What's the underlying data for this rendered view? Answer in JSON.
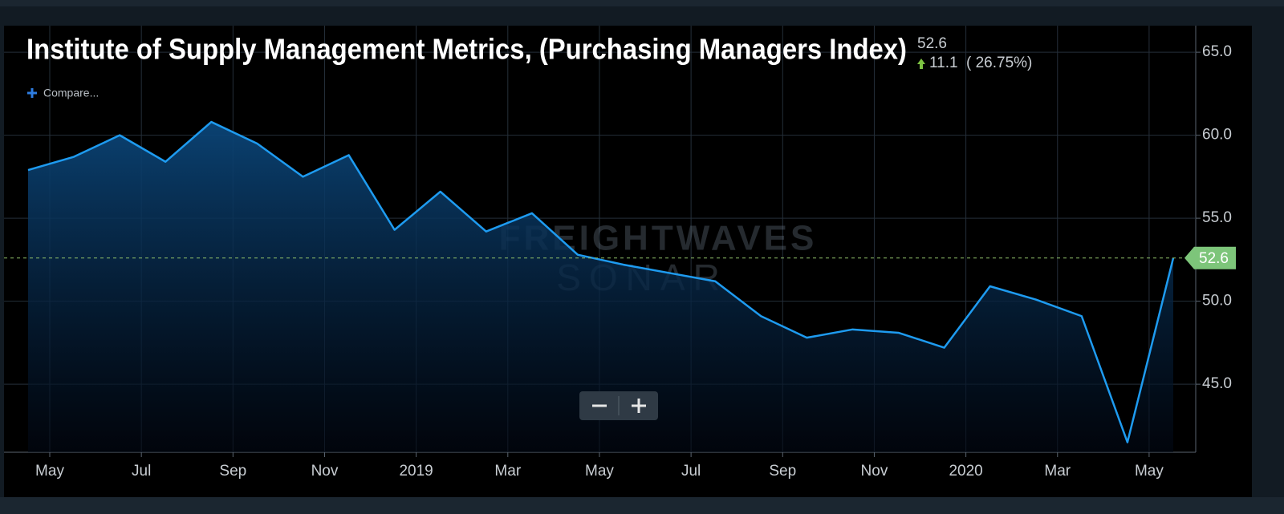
{
  "chart_data": {
    "type": "line",
    "title": "Institute of Supply Management Metrics, (Purchasing Managers Index)",
    "current_value": 52.6,
    "change": 11.1,
    "change_label": "( 26.75%)",
    "compare_label": "Compare...",
    "watermark": [
      "FREIGHTWAVES",
      "SONAR"
    ],
    "categories": [
      "May",
      null,
      "Jul",
      null,
      "Sep",
      null,
      "Nov",
      null,
      "2019",
      null,
      "Mar",
      null,
      "May",
      null,
      "Jul",
      null,
      "Sep",
      null,
      "Nov",
      null,
      "2020",
      null,
      "Mar",
      null,
      "May",
      null
    ],
    "values": [
      57.9,
      58.7,
      60.0,
      58.4,
      60.8,
      59.5,
      57.5,
      58.8,
      54.3,
      56.6,
      54.2,
      55.3,
      52.8,
      52.2,
      51.7,
      51.2,
      49.1,
      47.8,
      48.3,
      48.1,
      47.2,
      50.9,
      50.1,
      49.1,
      41.5,
      52.6
    ],
    "color": "#1e9bf0",
    "ylim": [
      40.9,
      66.6
    ],
    "yticks": [
      {
        "value": 45,
        "label": "45.0"
      },
      {
        "value": 50,
        "label": "50.0"
      },
      {
        "value": 55,
        "label": "55.0"
      },
      {
        "value": 60,
        "label": "60.0"
      },
      {
        "value": 65,
        "label": "65.0"
      }
    ],
    "grid": true
  }
}
